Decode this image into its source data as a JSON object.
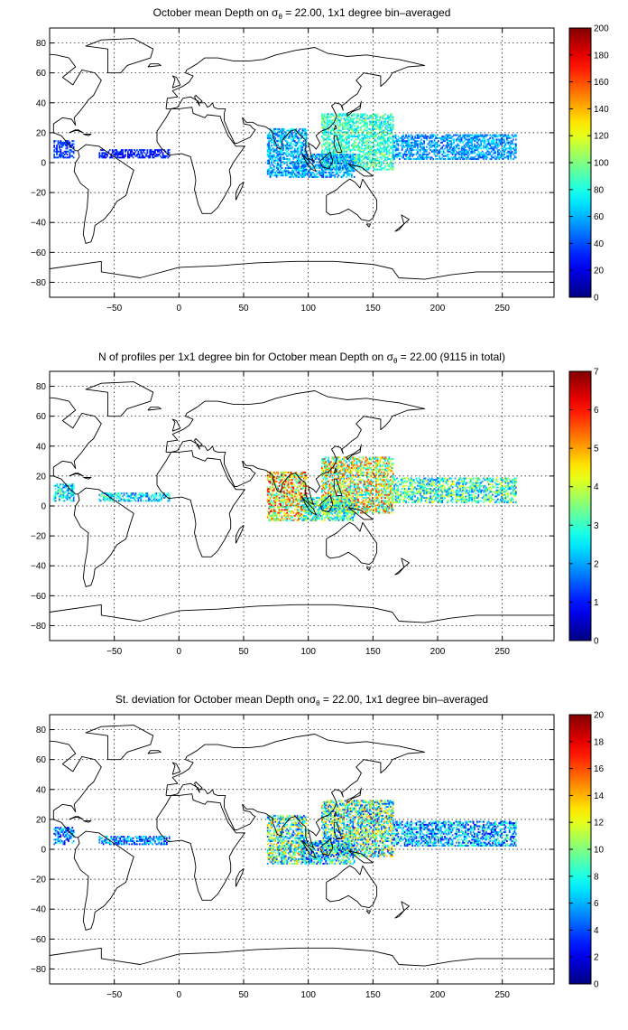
{
  "chart_data": [
    {
      "type": "heatmap",
      "title_prefix": "October mean Depth on ",
      "title_symbol": "σ",
      "title_subscript": "θ",
      "title_suffix": " = 22.00, 1x1 degree bin–averaged",
      "xlim": [
        -100,
        290
      ],
      "ylim": [
        -90,
        90
      ],
      "xticks": [
        -50,
        0,
        50,
        100,
        150,
        200,
        250
      ],
      "yticks": [
        -80,
        -60,
        -40,
        -20,
        0,
        20,
        40,
        60,
        80
      ],
      "grid": true,
      "colorbar": {
        "colormap": "jet",
        "clim": [
          0,
          200
        ],
        "ticks": [
          0,
          20,
          40,
          60,
          80,
          100,
          120,
          140,
          160,
          180,
          200
        ]
      },
      "regions": [
        {
          "lon": [
            -97,
            -82
          ],
          "lat": [
            3,
            14
          ],
          "mean": 35,
          "spread": 12
        },
        {
          "lon": [
            -62,
            -8
          ],
          "lat": [
            3,
            8
          ],
          "mean": 30,
          "spread": 10
        },
        {
          "lon": [
            68,
            98
          ],
          "lat": [
            -10,
            22
          ],
          "mean": 60,
          "spread": 25
        },
        {
          "lon": [
            110,
            165
          ],
          "lat": [
            -5,
            32
          ],
          "mean": 85,
          "spread": 25
        },
        {
          "lon": [
            165,
            260
          ],
          "lat": [
            2,
            18
          ],
          "mean": 55,
          "spread": 20
        },
        {
          "lon": [
            95,
            135
          ],
          "lat": [
            -10,
            5
          ],
          "mean": 55,
          "spread": 20
        }
      ]
    },
    {
      "type": "heatmap",
      "title_prefix": "N of profiles per 1x1 degree bin for October mean Depth on ",
      "title_symbol": "σ",
      "title_subscript": "θ",
      "title_suffix": " = 22.00 (9115 in total)",
      "xlim": [
        -100,
        290
      ],
      "ylim": [
        -90,
        90
      ],
      "xticks": [
        -50,
        0,
        50,
        100,
        150,
        200,
        250
      ],
      "yticks": [
        -80,
        -60,
        -40,
        -20,
        0,
        20,
        40,
        60,
        80
      ],
      "grid": true,
      "colorbar": {
        "colormap": "jet",
        "clim": [
          0,
          7
        ],
        "ticks": [
          0,
          1,
          2,
          3,
          4,
          5,
          6,
          7
        ]
      },
      "regions": [
        {
          "lon": [
            -97,
            -82
          ],
          "lat": [
            3,
            14
          ],
          "mean": 2.5,
          "spread": 1.2
        },
        {
          "lon": [
            -62,
            -8
          ],
          "lat": [
            3,
            8
          ],
          "mean": 2.5,
          "spread": 1.2
        },
        {
          "lon": [
            68,
            98
          ],
          "lat": [
            -10,
            22
          ],
          "mean": 4.5,
          "spread": 2
        },
        {
          "lon": [
            110,
            165
          ],
          "lat": [
            -5,
            32
          ],
          "mean": 4,
          "spread": 2
        },
        {
          "lon": [
            165,
            260
          ],
          "lat": [
            2,
            18
          ],
          "mean": 3,
          "spread": 1.5
        },
        {
          "lon": [
            95,
            135
          ],
          "lat": [
            -10,
            5
          ],
          "mean": 3,
          "spread": 1.5
        }
      ]
    },
    {
      "type": "heatmap",
      "title_prefix": "St. deviation for October mean Depth on",
      "title_symbol": "σ",
      "title_subscript": "θ",
      "title_suffix": " = 22.00, 1x1 degree bin–averaged",
      "xlim": [
        -100,
        290
      ],
      "ylim": [
        -90,
        90
      ],
      "xticks": [
        -50,
        0,
        50,
        100,
        150,
        200,
        250
      ],
      "yticks": [
        -80,
        -60,
        -40,
        -20,
        0,
        20,
        40,
        60,
        80
      ],
      "grid": true,
      "colorbar": {
        "colormap": "jet",
        "clim": [
          0,
          20
        ],
        "ticks": [
          0,
          2,
          4,
          6,
          8,
          10,
          12,
          14,
          16,
          18,
          20
        ]
      },
      "regions": [
        {
          "lon": [
            -97,
            -82
          ],
          "lat": [
            3,
            14
          ],
          "mean": 5,
          "spread": 3
        },
        {
          "lon": [
            -62,
            -8
          ],
          "lat": [
            3,
            8
          ],
          "mean": 5,
          "spread": 3
        },
        {
          "lon": [
            68,
            98
          ],
          "lat": [
            -10,
            22
          ],
          "mean": 9,
          "spread": 6
        },
        {
          "lon": [
            110,
            165
          ],
          "lat": [
            -5,
            32
          ],
          "mean": 9,
          "spread": 6
        },
        {
          "lon": [
            165,
            260
          ],
          "lat": [
            2,
            18
          ],
          "mean": 6,
          "spread": 4
        },
        {
          "lon": [
            95,
            135
          ],
          "lat": [
            -10,
            5
          ],
          "mean": 7,
          "spread": 5
        }
      ]
    }
  ]
}
